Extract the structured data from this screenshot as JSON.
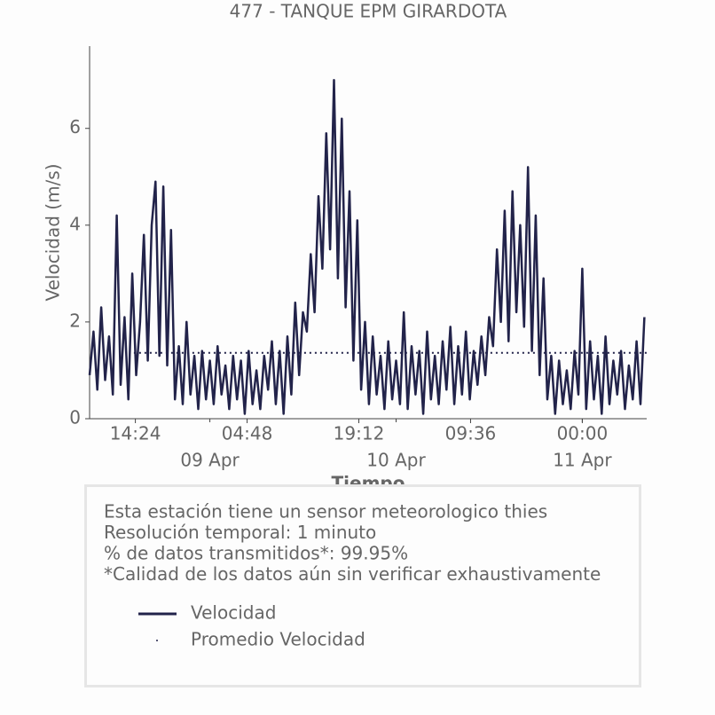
{
  "chart_data": {
    "type": "line",
    "title": "477 - TANQUE EPM GIRARDOTA",
    "xlabel": "Tiempo",
    "ylabel": "Velocidad (m/s)",
    "xlim": [
      -15.5,
      56.3
    ],
    "ylim": [
      0,
      7.7
    ],
    "yticks": [
      0,
      2,
      4,
      6
    ],
    "xticks": [
      {
        "value": -9.6,
        "label": "14:24"
      },
      {
        "value": 4.8,
        "label": "04:48"
      },
      {
        "value": 19.2,
        "label": "19:12"
      },
      {
        "value": 33.6,
        "label": "09:36"
      },
      {
        "value": 48,
        "label": "00:00"
      }
    ],
    "xticks_dates": [
      {
        "value": 0,
        "label": "09 Apr"
      },
      {
        "value": 24,
        "label": "10 Apr"
      },
      {
        "value": 48,
        "label": "11 Apr"
      }
    ],
    "series": [
      {
        "name": "Velocidad",
        "color": "#22234a",
        "style": "solid",
        "x": [
          -15.5,
          -15,
          -14.5,
          -14,
          -13.5,
          -13,
          -12.5,
          -12,
          -11.5,
          -11,
          -10.5,
          -10,
          -9.5,
          -9,
          -8.5,
          -8,
          -7.5,
          -7,
          -6.5,
          -6,
          -5.5,
          -5,
          -4.5,
          -4,
          -3.5,
          -3,
          -2.5,
          -2,
          -1.5,
          -1,
          -0.5,
          0,
          0.5,
          1,
          1.5,
          2,
          2.5,
          3,
          3.5,
          4,
          4.5,
          5,
          5.5,
          6,
          6.5,
          7,
          7.5,
          8,
          8.5,
          9,
          9.5,
          10,
          10.5,
          11,
          11.5,
          12,
          12.5,
          13,
          13.5,
          14,
          14.5,
          15,
          15.5,
          16,
          16.5,
          17,
          17.5,
          18,
          18.5,
          19,
          19.5,
          20,
          20.5,
          21,
          21.5,
          22,
          22.5,
          23,
          23.5,
          24,
          24.5,
          25,
          25.5,
          26,
          26.5,
          27,
          27.5,
          28,
          28.5,
          29,
          29.5,
          30,
          30.5,
          31,
          31.5,
          32,
          32.5,
          33,
          33.5,
          34,
          34.5,
          35,
          35.5,
          36,
          36.5,
          37,
          37.5,
          38,
          38.5,
          39,
          39.5,
          40,
          40.5,
          41,
          41.5,
          42,
          42.5,
          43,
          43.5,
          44,
          44.5,
          45,
          45.5,
          46,
          46.5,
          47,
          47.5,
          48,
          48.5,
          49,
          49.5,
          50,
          50.5,
          51,
          51.5,
          52,
          52.5,
          53,
          53.5,
          54,
          54.5,
          55,
          55.5,
          56
        ],
        "values": [
          0.9,
          1.8,
          0.6,
          2.3,
          0.8,
          1.7,
          0.5,
          4.2,
          0.7,
          2.1,
          0.4,
          3.0,
          0.9,
          2.0,
          3.8,
          1.2,
          4.0,
          4.9,
          1.3,
          4.8,
          1.1,
          3.9,
          0.4,
          1.5,
          0.3,
          2.0,
          0.5,
          1.3,
          0.2,
          1.4,
          0.4,
          1.2,
          0.3,
          1.5,
          0.5,
          1.1,
          0.2,
          1.3,
          0.4,
          1.2,
          0.1,
          1.4,
          0.3,
          1.0,
          0.2,
          1.3,
          0.6,
          1.6,
          0.3,
          1.4,
          0.1,
          1.7,
          0.5,
          2.4,
          0.9,
          2.2,
          1.8,
          3.4,
          2.2,
          4.6,
          3.1,
          5.9,
          3.5,
          7.0,
          2.9,
          6.2,
          2.3,
          4.7,
          1.2,
          4.1,
          0.6,
          2.0,
          0.3,
          1.7,
          0.5,
          1.3,
          0.2,
          1.6,
          0.4,
          1.2,
          0.3,
          2.2,
          0.2,
          1.5,
          0.5,
          1.4,
          0.1,
          1.8,
          0.4,
          1.3,
          0.3,
          1.6,
          0.6,
          1.9,
          0.3,
          1.5,
          0.5,
          1.8,
          0.4,
          1.4,
          0.7,
          1.7,
          0.9,
          2.1,
          1.5,
          3.5,
          2.0,
          4.3,
          1.6,
          4.7,
          2.2,
          4.0,
          1.9,
          5.2,
          1.4,
          4.2,
          0.9,
          2.9,
          0.4,
          1.3,
          0.1,
          1.2,
          0.3,
          1.0,
          0.2,
          1.4,
          0.5,
          3.1,
          0.2,
          1.6,
          0.4,
          1.3,
          0.1,
          1.7,
          0.3,
          1.2,
          0.5,
          1.4,
          0.2,
          1.1,
          0.4,
          1.6,
          0.3,
          2.1
        ]
      },
      {
        "name": "Promedio Velocidad",
        "color": "#22234a",
        "style": "dotted",
        "x": [
          -9.8,
          56.3
        ],
        "values": [
          1.36,
          1.36
        ]
      }
    ],
    "info": [
      "Esta estación tiene un sensor meteorologico thies",
      "Resolución temporal: 1 minuto",
      "% de datos transmitidos*: 99.95%",
      "*Calidad de los datos aún sin verificar exhaustivamente"
    ]
  }
}
